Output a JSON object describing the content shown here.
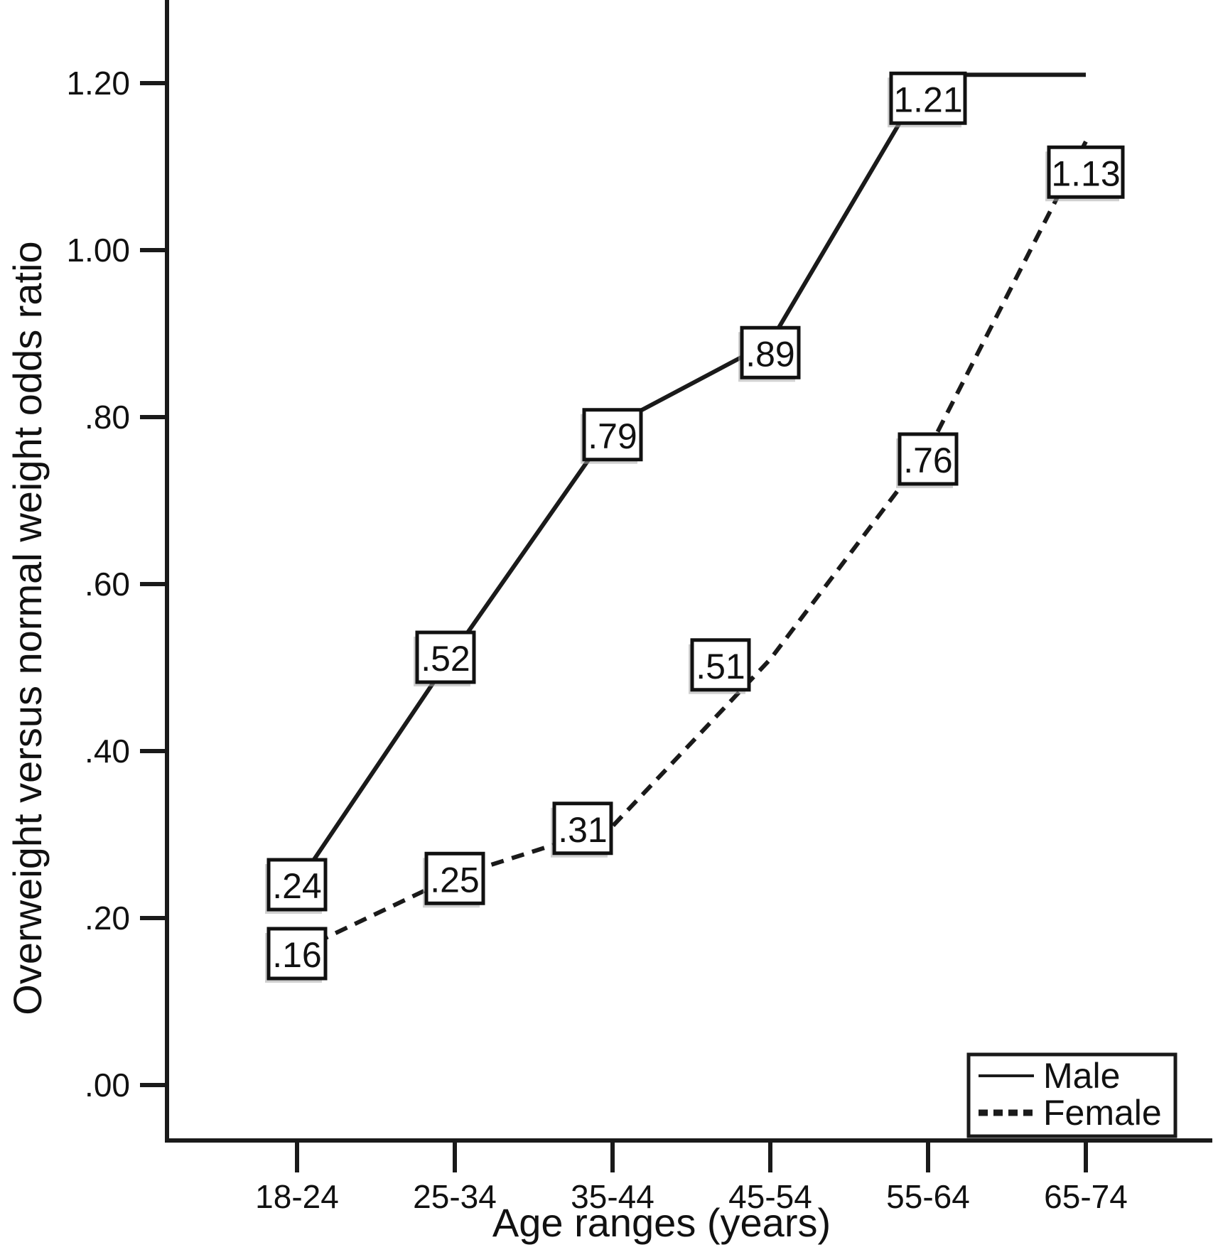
{
  "chart_data": {
    "type": "line",
    "title": "",
    "xlabel": "Age ranges (years)",
    "ylabel": "Overweight versus normal weight odds ratio",
    "categories": [
      "18-24",
      "25-34",
      "35-44",
      "45-54",
      "55-64",
      "65-74"
    ],
    "series": [
      {
        "name": "Male",
        "style": "solid",
        "values": [
          0.24,
          0.52,
          0.79,
          0.89,
          1.21,
          1.21
        ],
        "point_labels": [
          ".24",
          ".52",
          ".79",
          ".89",
          "1.21",
          ""
        ],
        "label_offsets": [
          [
            0,
            0
          ],
          [
            -13,
            9
          ],
          [
            0,
            13
          ],
          [
            0,
            15
          ],
          [
            0,
            33
          ],
          [
            0,
            0
          ]
        ]
      },
      {
        "name": "Female",
        "style": "dashed",
        "values": [
          0.16,
          0.25,
          0.31,
          0.51,
          0.76,
          1.13
        ],
        "point_labels": [
          ".16",
          ".25",
          ".31",
          ".51",
          ".76",
          "1.13"
        ],
        "label_offsets": [
          [
            0,
            3
          ],
          [
            0,
            3
          ],
          [
            -42,
            3
          ],
          [
            -70,
            8
          ],
          [
            0,
            12
          ],
          [
            0,
            43
          ]
        ]
      }
    ],
    "yticks": {
      "labels": [
        ".00",
        ".20",
        ".40",
        ".60",
        ".80",
        "1.00",
        "1.20"
      ],
      "values": [
        0.0,
        0.2,
        0.4,
        0.6,
        0.8,
        1.0,
        1.2
      ]
    },
    "ylim": [
      -0.07,
      1.37
    ],
    "grid": false,
    "legend_position": "bottom-right"
  },
  "legend": {
    "items": [
      {
        "label": "Male",
        "style": "solid"
      },
      {
        "label": "Female",
        "style": "dashed"
      }
    ]
  },
  "colors": {
    "line": "#1a1a1a",
    "axis": "#1a1a1a",
    "text": "#111111",
    "label_box_fill": "#ffffff",
    "label_box_border": "#111111",
    "label_box_shadow": "#aaaaaa",
    "background": "#ffffff"
  }
}
